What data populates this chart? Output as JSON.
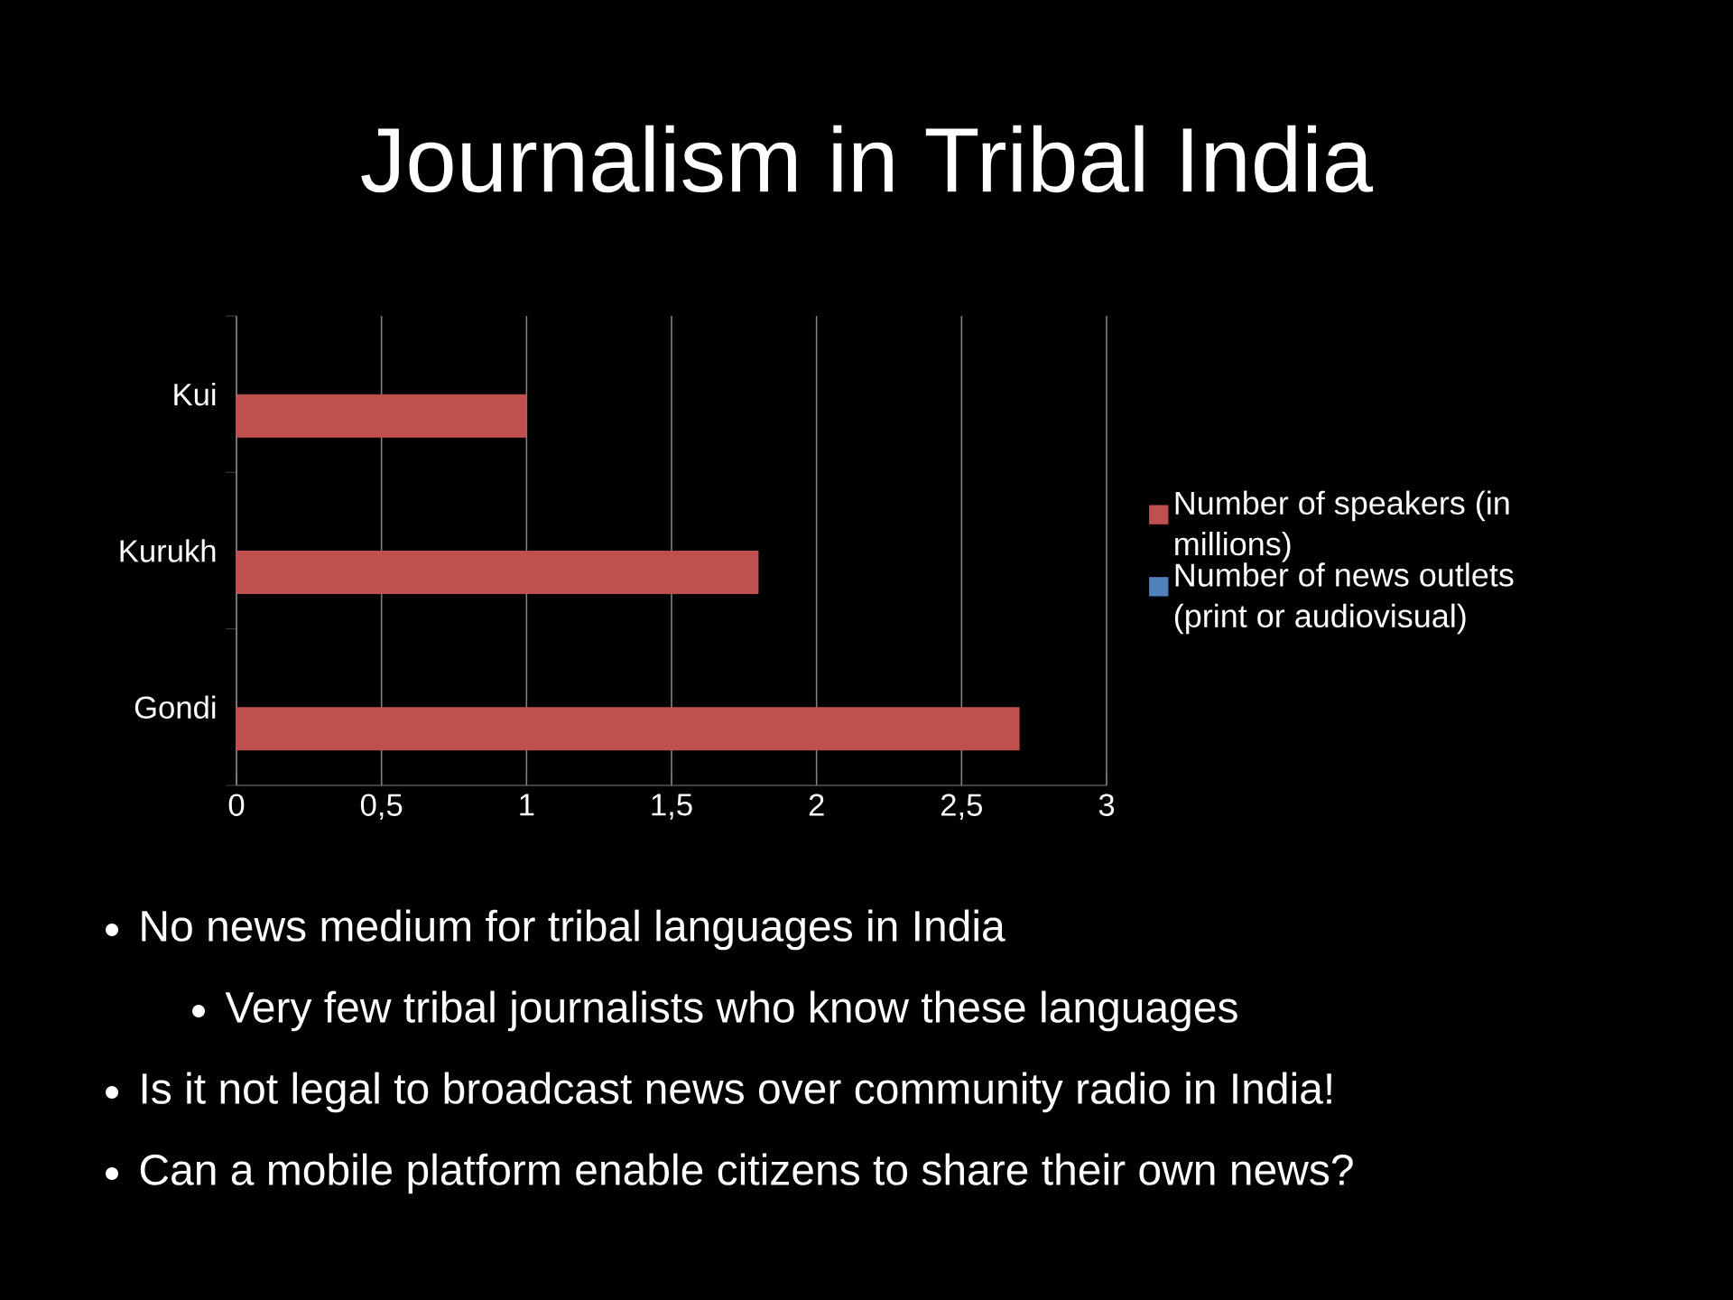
{
  "chart_data": {
    "type": "bar",
    "orientation": "horizontal",
    "title": "Journalism in Tribal India",
    "categories": [
      "Kui",
      "Kurukh",
      "Gondi"
    ],
    "series": [
      {
        "name": "Number of speakers (in millions)",
        "color": "#c0504d",
        "values": [
          1,
          1.8,
          2.7
        ]
      },
      {
        "name": "Number of news outlets (print or audiovisual)",
        "color": "#4f81bd",
        "values": [
          0,
          0,
          0
        ]
      }
    ],
    "xlim": [
      0,
      3
    ],
    "xticks": [
      0,
      {
        "value": 0.5,
        "label": "0,5"
      },
      1,
      {
        "value": 1.5,
        "label": "1,5"
      },
      2,
      {
        "value": 2.5,
        "label": "2,5"
      },
      3
    ],
    "grid": "x",
    "legend": "right",
    "annotations": [
      "No news medium for tribal languages in India",
      "Very few tribal journalists who know these languages",
      "Is it not legal to broadcast news over community radio in India!",
      "Can a mobile platform enable citizens to share their own news?"
    ]
  }
}
